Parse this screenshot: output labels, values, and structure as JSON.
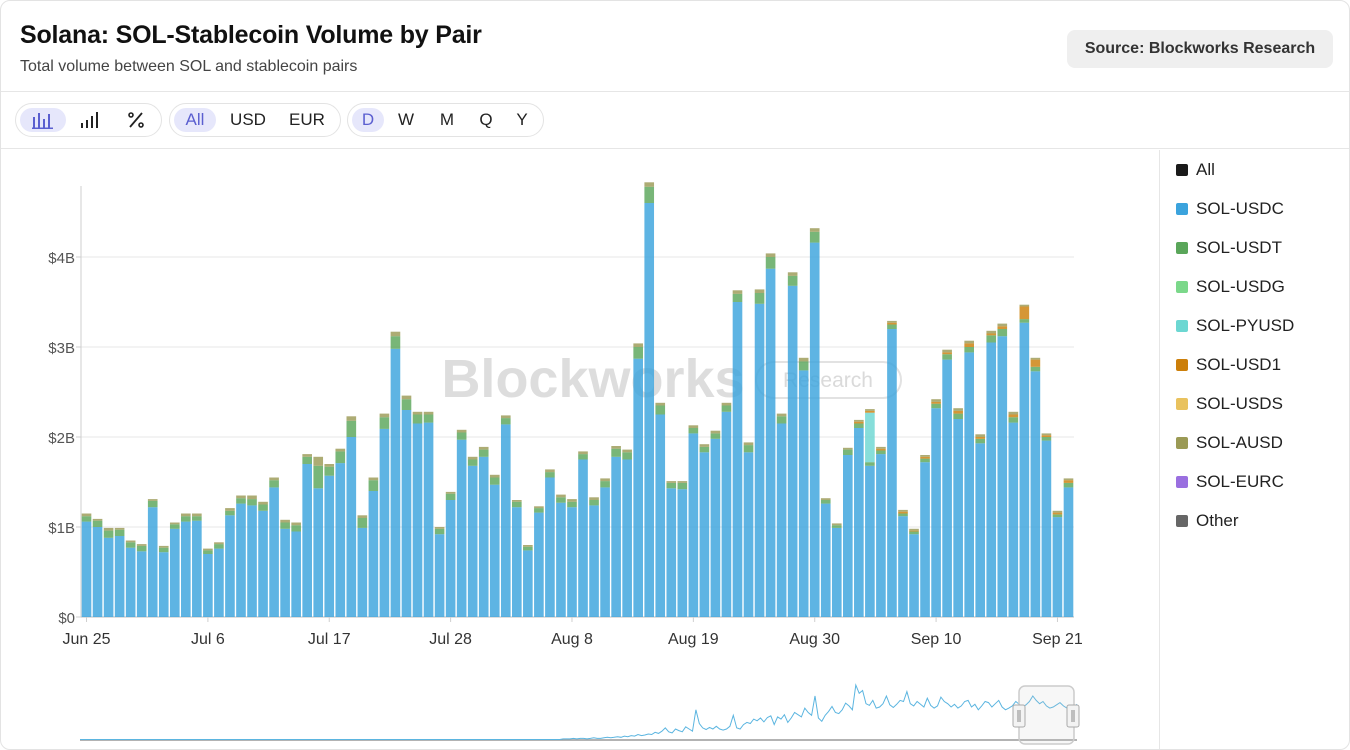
{
  "header": {
    "title": "Solana: SOL-Stablecoin Volume by Pair",
    "subtitle": "Total volume between SOL and stablecoin pairs",
    "source_label": "Source: Blockworks Research"
  },
  "toolbar": {
    "chart_types": [
      {
        "icon": "bar-chart-icon",
        "active": true
      },
      {
        "icon": "signal-bars-icon",
        "active": false
      },
      {
        "icon": "percent-icon",
        "active": false
      }
    ],
    "currency": [
      {
        "label": "All",
        "active": true
      },
      {
        "label": "USD",
        "active": false
      },
      {
        "label": "EUR",
        "active": false
      }
    ],
    "interval": [
      {
        "label": "D",
        "active": true
      },
      {
        "label": "W",
        "active": false
      },
      {
        "label": "M",
        "active": false
      },
      {
        "label": "Q",
        "active": false
      },
      {
        "label": "Y",
        "active": false
      }
    ]
  },
  "watermark": {
    "brand": "Blockworks",
    "tag": "Research"
  },
  "legend": [
    {
      "label": "All",
      "color": "#1a1a1a"
    },
    {
      "label": "SOL-USDC",
      "color": "#3ba3dd"
    },
    {
      "label": "SOL-USDT",
      "color": "#5aa65a"
    },
    {
      "label": "SOL-USDG",
      "color": "#7bd88a"
    },
    {
      "label": "SOL-PYUSD",
      "color": "#6cd7d2"
    },
    {
      "label": "SOL-USD1",
      "color": "#cc7f0a"
    },
    {
      "label": "SOL-USDS",
      "color": "#e9c25e"
    },
    {
      "label": "SOL-AUSD",
      "color": "#9b9a55"
    },
    {
      "label": "SOL-EURC",
      "color": "#9a6fe0"
    },
    {
      "label": "Other",
      "color": "#666666"
    }
  ],
  "chart_data": {
    "type": "bar",
    "stacked": true,
    "title": "Solana: SOL-Stablecoin Volume by Pair",
    "subtitle": "Total volume between SOL and stablecoin pairs",
    "x_start": "Jun 25",
    "x_end": "Sep 21",
    "x_tick_labels": [
      "Jun 25",
      "Jul 6",
      "Jul 17",
      "Jul 28",
      "Aug 8",
      "Aug 19",
      "Aug 30",
      "Sep 10",
      "Sep 21"
    ],
    "y_tick_labels": [
      "$0",
      "$1B",
      "$2B",
      "$3B",
      "$4B"
    ],
    "y_ticks": [
      0,
      1,
      2,
      3,
      4
    ],
    "ylim": [
      0,
      4.8
    ],
    "y_unit": "USD billions",
    "grid": true,
    "legend_position": "right",
    "series": [
      {
        "name": "SOL-USDC",
        "color": "#3ba3dd",
        "values": [
          1.06,
          1.0,
          0.88,
          0.9,
          0.77,
          0.73,
          1.22,
          0.72,
          0.98,
          1.06,
          1.07,
          0.7,
          0.76,
          1.13,
          1.26,
          1.24,
          1.18,
          1.44,
          0.98,
          0.95,
          1.7,
          1.43,
          1.57,
          1.71,
          2.0,
          0.99,
          1.4,
          2.09,
          2.98,
          2.3,
          2.15,
          2.16,
          0.92,
          1.3,
          1.97,
          1.68,
          1.78,
          1.47,
          2.14,
          1.22,
          0.74,
          1.16,
          1.55,
          1.27,
          1.22,
          1.75,
          1.24,
          1.44,
          1.78,
          1.75,
          2.87,
          4.6,
          2.25,
          1.43,
          1.42,
          2.04,
          1.83,
          1.98,
          2.28,
          3.5,
          1.83,
          3.48,
          3.87,
          2.15,
          3.68,
          2.74,
          4.16,
          1.26,
          0.99,
          1.8,
          2.1,
          1.68,
          1.81,
          3.2,
          1.12,
          0.92,
          1.72,
          2.32,
          2.86,
          2.2,
          2.94,
          1.93,
          3.05,
          3.12,
          2.16,
          3.27,
          2.73,
          1.96,
          1.11,
          1.44
        ]
      },
      {
        "name": "SOL-USDT",
        "color": "#5aa65a",
        "values": [
          0.06,
          0.07,
          0.08,
          0.07,
          0.06,
          0.06,
          0.07,
          0.05,
          0.05,
          0.06,
          0.05,
          0.04,
          0.05,
          0.05,
          0.06,
          0.07,
          0.07,
          0.08,
          0.07,
          0.07,
          0.08,
          0.25,
          0.1,
          0.13,
          0.18,
          0.11,
          0.12,
          0.13,
          0.14,
          0.12,
          0.1,
          0.09,
          0.06,
          0.07,
          0.08,
          0.07,
          0.08,
          0.08,
          0.07,
          0.06,
          0.04,
          0.05,
          0.06,
          0.06,
          0.06,
          0.06,
          0.06,
          0.07,
          0.09,
          0.08,
          0.13,
          0.18,
          0.1,
          0.06,
          0.07,
          0.06,
          0.06,
          0.06,
          0.07,
          0.09,
          0.08,
          0.12,
          0.13,
          0.08,
          0.11,
          0.1,
          0.12,
          0.04,
          0.03,
          0.06,
          0.05,
          0.04,
          0.04,
          0.05,
          0.03,
          0.03,
          0.04,
          0.05,
          0.06,
          0.06,
          0.06,
          0.05,
          0.08,
          0.08,
          0.06,
          0.04,
          0.05,
          0.04,
          0.03,
          0.05
        ]
      },
      {
        "name": "SOL-USDG",
        "color": "#7bd88a",
        "values": [
          0.0,
          0.0,
          0.0,
          0.0,
          0.0,
          0.0,
          0.0,
          0.0,
          0.0,
          0.0,
          0.0,
          0.0,
          0.0,
          0.0,
          0.0,
          0.0,
          0.0,
          0.0,
          0.0,
          0.0,
          0.0,
          0.0,
          0.0,
          0.0,
          0.0,
          0.0,
          0.0,
          0.0,
          0.0,
          0.0,
          0.0,
          0.0,
          0.0,
          0.0,
          0.0,
          0.0,
          0.0,
          0.0,
          0.0,
          0.0,
          0.0,
          0.0,
          0.0,
          0.0,
          0.0,
          0.0,
          0.0,
          0.0,
          0.0,
          0.0,
          0.0,
          0.0,
          0.0,
          0.0,
          0.0,
          0.0,
          0.0,
          0.0,
          0.0,
          0.0,
          0.0,
          0.0,
          0.0,
          0.0,
          0.0,
          0.0,
          0.0,
          0.0,
          0.0,
          0.0,
          0.0,
          0.0,
          0.0,
          0.0,
          0.0,
          0.0,
          0.0,
          0.0,
          0.0,
          0.0,
          0.0,
          0.0,
          0.0,
          0.0,
          0.0,
          0.0,
          0.0,
          0.0,
          0.0,
          0.0
        ]
      },
      {
        "name": "SOL-PYUSD",
        "color": "#6cd7d2",
        "values": [
          0.0,
          0.0,
          0.0,
          0.0,
          0.0,
          0.0,
          0.0,
          0.0,
          0.0,
          0.0,
          0.0,
          0.0,
          0.0,
          0.0,
          0.0,
          0.0,
          0.0,
          0.0,
          0.0,
          0.0,
          0.0,
          0.0,
          0.0,
          0.0,
          0.0,
          0.0,
          0.0,
          0.0,
          0.0,
          0.0,
          0.0,
          0.0,
          0.0,
          0.0,
          0.0,
          0.0,
          0.0,
          0.0,
          0.0,
          0.0,
          0.0,
          0.0,
          0.0,
          0.0,
          0.0,
          0.0,
          0.0,
          0.0,
          0.0,
          0.0,
          0.0,
          0.0,
          0.0,
          0.0,
          0.0,
          0.0,
          0.0,
          0.0,
          0.0,
          0.0,
          0.0,
          0.0,
          0.0,
          0.0,
          0.0,
          0.0,
          0.0,
          0.0,
          0.0,
          0.0,
          0.0,
          0.55,
          0.0,
          0.0,
          0.0,
          0.0,
          0.0,
          0.0,
          0.0,
          0.0,
          0.0,
          0.0,
          0.0,
          0.0,
          0.0,
          0.0,
          0.0,
          0.0,
          0.0,
          0.0
        ]
      },
      {
        "name": "SOL-USD1",
        "color": "#cc7f0a",
        "values": [
          0.0,
          0.0,
          0.0,
          0.0,
          0.0,
          0.0,
          0.0,
          0.0,
          0.0,
          0.0,
          0.0,
          0.0,
          0.0,
          0.0,
          0.0,
          0.0,
          0.0,
          0.0,
          0.0,
          0.0,
          0.0,
          0.0,
          0.0,
          0.0,
          0.0,
          0.0,
          0.0,
          0.0,
          0.0,
          0.0,
          0.0,
          0.0,
          0.0,
          0.0,
          0.0,
          0.0,
          0.0,
          0.0,
          0.0,
          0.0,
          0.0,
          0.0,
          0.0,
          0.0,
          0.0,
          0.0,
          0.0,
          0.0,
          0.0,
          0.0,
          0.0,
          0.0,
          0.0,
          0.0,
          0.0,
          0.0,
          0.0,
          0.0,
          0.0,
          0.0,
          0.0,
          0.0,
          0.0,
          0.0,
          0.0,
          0.0,
          0.0,
          0.0,
          0.0,
          0.0,
          0.02,
          0.02,
          0.02,
          0.02,
          0.02,
          0.01,
          0.02,
          0.02,
          0.02,
          0.03,
          0.04,
          0.02,
          0.02,
          0.03,
          0.03,
          0.14,
          0.08,
          0.02,
          0.02,
          0.03
        ]
      },
      {
        "name": "SOL-USDS",
        "color": "#e9c25e",
        "values": [
          0.0,
          0.0,
          0.0,
          0.0,
          0.0,
          0.0,
          0.0,
          0.0,
          0.0,
          0.0,
          0.0,
          0.0,
          0.0,
          0.0,
          0.0,
          0.0,
          0.0,
          0.0,
          0.0,
          0.0,
          0.0,
          0.0,
          0.0,
          0.0,
          0.0,
          0.0,
          0.0,
          0.0,
          0.0,
          0.0,
          0.0,
          0.0,
          0.0,
          0.0,
          0.0,
          0.0,
          0.0,
          0.0,
          0.0,
          0.0,
          0.0,
          0.0,
          0.0,
          0.0,
          0.0,
          0.0,
          0.0,
          0.0,
          0.0,
          0.0,
          0.0,
          0.0,
          0.0,
          0.0,
          0.0,
          0.0,
          0.0,
          0.0,
          0.0,
          0.0,
          0.0,
          0.0,
          0.0,
          0.0,
          0.0,
          0.0,
          0.0,
          0.0,
          0.0,
          0.0,
          0.0,
          0.0,
          0.0,
          0.0,
          0.0,
          0.0,
          0.0,
          0.0,
          0.0,
          0.0,
          0.0,
          0.0,
          0.0,
          0.0,
          0.0,
          0.0,
          0.0,
          0.0,
          0.0,
          0.0
        ]
      },
      {
        "name": "SOL-AUSD",
        "color": "#9b9a55",
        "values": [
          0.03,
          0.02,
          0.03,
          0.02,
          0.02,
          0.02,
          0.02,
          0.02,
          0.02,
          0.03,
          0.03,
          0.02,
          0.02,
          0.03,
          0.03,
          0.04,
          0.03,
          0.03,
          0.03,
          0.03,
          0.03,
          0.1,
          0.03,
          0.03,
          0.05,
          0.03,
          0.03,
          0.04,
          0.05,
          0.04,
          0.03,
          0.03,
          0.02,
          0.02,
          0.03,
          0.03,
          0.03,
          0.03,
          0.03,
          0.02,
          0.02,
          0.02,
          0.03,
          0.03,
          0.03,
          0.03,
          0.03,
          0.03,
          0.03,
          0.03,
          0.04,
          0.05,
          0.03,
          0.02,
          0.02,
          0.03,
          0.03,
          0.03,
          0.03,
          0.04,
          0.03,
          0.04,
          0.04,
          0.03,
          0.04,
          0.04,
          0.04,
          0.02,
          0.02,
          0.02,
          0.02,
          0.02,
          0.02,
          0.02,
          0.02,
          0.02,
          0.02,
          0.03,
          0.03,
          0.03,
          0.03,
          0.03,
          0.03,
          0.03,
          0.03,
          0.02,
          0.02,
          0.02,
          0.02,
          0.02
        ]
      },
      {
        "name": "SOL-EURC",
        "color": "#9a6fe0",
        "values": [
          0.0,
          0.0,
          0.0,
          0.0,
          0.0,
          0.0,
          0.0,
          0.0,
          0.0,
          0.0,
          0.0,
          0.0,
          0.0,
          0.0,
          0.0,
          0.0,
          0.0,
          0.0,
          0.0,
          0.0,
          0.0,
          0.0,
          0.0,
          0.0,
          0.0,
          0.0,
          0.0,
          0.0,
          0.0,
          0.0,
          0.0,
          0.0,
          0.0,
          0.0,
          0.0,
          0.0,
          0.0,
          0.0,
          0.0,
          0.0,
          0.0,
          0.0,
          0.0,
          0.0,
          0.0,
          0.0,
          0.0,
          0.0,
          0.0,
          0.0,
          0.0,
          0.0,
          0.0,
          0.0,
          0.0,
          0.0,
          0.0,
          0.0,
          0.0,
          0.0,
          0.0,
          0.0,
          0.0,
          0.0,
          0.0,
          0.0,
          0.0,
          0.0,
          0.0,
          0.0,
          0.0,
          0.0,
          0.0,
          0.0,
          0.0,
          0.0,
          0.0,
          0.0,
          0.0,
          0.0,
          0.0,
          0.0,
          0.0,
          0.0,
          0.0,
          0.0,
          0.0,
          0.0,
          0.0,
          0.0
        ]
      },
      {
        "name": "Other",
        "color": "#666666",
        "values": [
          0.0,
          0.0,
          0.0,
          0.0,
          0.0,
          0.0,
          0.0,
          0.0,
          0.0,
          0.0,
          0.0,
          0.0,
          0.0,
          0.0,
          0.0,
          0.0,
          0.0,
          0.0,
          0.0,
          0.0,
          0.0,
          0.0,
          0.0,
          0.0,
          0.0,
          0.0,
          0.0,
          0.0,
          0.0,
          0.0,
          0.0,
          0.0,
          0.0,
          0.0,
          0.0,
          0.0,
          0.0,
          0.0,
          0.0,
          0.0,
          0.0,
          0.0,
          0.0,
          0.0,
          0.0,
          0.0,
          0.0,
          0.0,
          0.0,
          0.0,
          0.0,
          0.0,
          0.0,
          0.0,
          0.0,
          0.0,
          0.0,
          0.0,
          0.0,
          0.0,
          0.0,
          0.0,
          0.0,
          0.0,
          0.0,
          0.0,
          0.0,
          0.0,
          0.0,
          0.0,
          0.0,
          0.0,
          0.0,
          0.0,
          0.0,
          0.0,
          0.0,
          0.0,
          0.0,
          0.0,
          0.0,
          0.0,
          0.0,
          0.0,
          0.0,
          0.0,
          0.0,
          0.0,
          0.0,
          0.0
        ]
      }
    ],
    "navigator": {
      "type": "line",
      "color": "#5bb5e0",
      "values": [
        0.01,
        0.01,
        0.01,
        0.01,
        0.01,
        0.01,
        0.01,
        0.01,
        0.01,
        0.01,
        0.01,
        0.01,
        0.01,
        0.01,
        0.01,
        0.01,
        0.01,
        0.01,
        0.01,
        0.01,
        0.01,
        0.01,
        0.01,
        0.01,
        0.01,
        0.01,
        0.01,
        0.01,
        0.01,
        0.01,
        0.01,
        0.01,
        0.01,
        0.01,
        0.01,
        0.01,
        0.01,
        0.01,
        0.01,
        0.01,
        0.01,
        0.01,
        0.01,
        0.01,
        0.01,
        0.01,
        0.01,
        0.01,
        0.01,
        0.01,
        0.01,
        0.01,
        0.01,
        0.01,
        0.01,
        0.01,
        0.01,
        0.01,
        0.01,
        0.01,
        0.01,
        0.01,
        0.01,
        0.01,
        0.01,
        0.01,
        0.01,
        0.01,
        0.01,
        0.01,
        0.01,
        0.01,
        0.01,
        0.01,
        0.01,
        0.01,
        0.01,
        0.01,
        0.01,
        0.01,
        0.01,
        0.01,
        0.01,
        0.01,
        0.01,
        0.01,
        0.01,
        0.01,
        0.01,
        0.01,
        0.01,
        0.01,
        0.01,
        0.01,
        0.01,
        0.01,
        0.01,
        0.01,
        0.01,
        0.01,
        0.01,
        0.01,
        0.01,
        0.01,
        0.01,
        0.01,
        0.01,
        0.01,
        0.01,
        0.01,
        0.01,
        0.01,
        0.01,
        0.01,
        0.01,
        0.01,
        0.01,
        0.01,
        0.01,
        0.01,
        0.01,
        0.01,
        0.01,
        0.01,
        0.01,
        0.01,
        0.01,
        0.01,
        0.01,
        0.01,
        0.01,
        0.01,
        0.01,
        0.01,
        0.01,
        0.01,
        0.01,
        0.01,
        0.01,
        0.01,
        0.01,
        0.01,
        0.02,
        0.02,
        0.02,
        0.03,
        0.02,
        0.03,
        0.03,
        0.02,
        0.03,
        0.04,
        0.03,
        0.03,
        0.04,
        0.05,
        0.04,
        0.05,
        0.06,
        0.05,
        0.07,
        0.06,
        0.08,
        0.07,
        0.1,
        0.08,
        0.09,
        0.11,
        0.1,
        0.14,
        0.12,
        0.16,
        0.22,
        0.15,
        0.13,
        0.2,
        0.17,
        0.15,
        0.24,
        0.2,
        0.16,
        0.55,
        0.3,
        0.22,
        0.19,
        0.23,
        0.2,
        0.25,
        0.2,
        0.18,
        0.2,
        0.25,
        0.45,
        0.22,
        0.2,
        0.28,
        0.32,
        0.3,
        0.38,
        0.35,
        0.4,
        0.33,
        0.41,
        0.44,
        0.28,
        0.42,
        0.38,
        0.46,
        0.32,
        0.4,
        0.5,
        0.46,
        0.42,
        0.58,
        0.5,
        0.45,
        0.8,
        0.4,
        0.34,
        0.45,
        0.52,
        0.61,
        0.5,
        0.48,
        0.55,
        0.67,
        0.62,
        0.55,
        1.0,
        0.85,
        0.9,
        0.66,
        0.63,
        0.72,
        0.58,
        0.6,
        0.66,
        0.8,
        0.64,
        0.59,
        0.65,
        0.72,
        0.7,
        0.88,
        0.66,
        0.62,
        0.7,
        0.65,
        0.6,
        0.76,
        0.63,
        0.58,
        0.62,
        0.78,
        0.7,
        0.66,
        0.6,
        0.65,
        0.58,
        0.62,
        0.7,
        0.72,
        0.6,
        0.65,
        0.55,
        0.62,
        0.7,
        0.68,
        0.6,
        0.66,
        0.72,
        0.6,
        0.55,
        0.58,
        0.62,
        0.7,
        0.65,
        0.6,
        0.64,
        0.7,
        0.8,
        0.72,
        0.66,
        0.7,
        0.62,
        0.58,
        0.6,
        0.64,
        0.68,
        0.62,
        0.58,
        0.56,
        0.6,
        0.65
      ]
    }
  }
}
